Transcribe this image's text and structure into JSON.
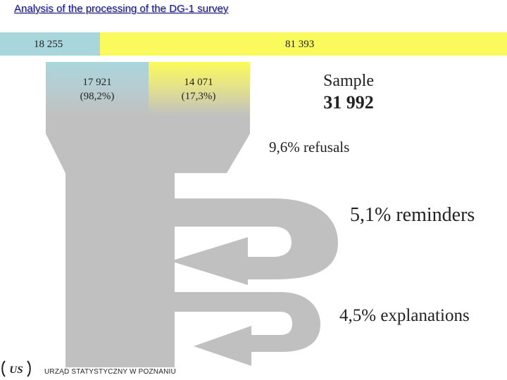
{
  "title": "Analysis of the processing of the DG-1 survey",
  "top_bar": {
    "left_value": "18 255",
    "right_value": "81 393"
  },
  "columns": {
    "left": {
      "value": "17 921",
      "pct": "(98,2%)"
    },
    "right": {
      "value": "14 071",
      "pct": "(17,3%)"
    }
  },
  "sample": {
    "label": "Sample",
    "value": "31 992"
  },
  "refusals": "9,6% refusals",
  "reminders": "5,1% reminders",
  "explanations": "4,5% explanations",
  "footer": {
    "institution": "URZĄD STATYSTYCZNY W POZNANIU",
    "logo_text": "US"
  },
  "colors": {
    "blue": "#a9d6dc",
    "yellow": "#fbfa5c",
    "flow_grey": "#c0c0c0"
  }
}
